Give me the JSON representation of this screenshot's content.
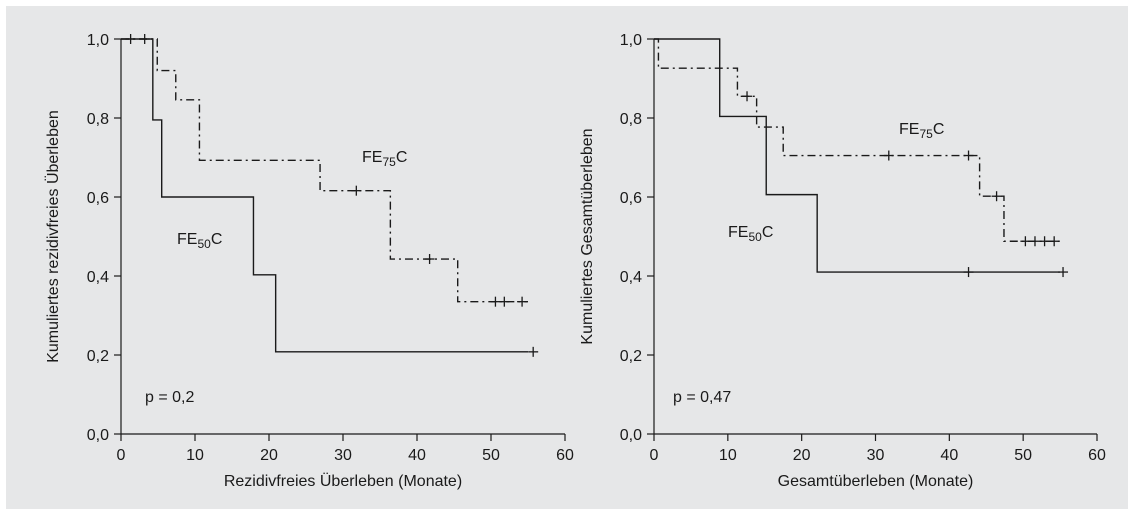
{
  "chart_data": [
    {
      "type": "line",
      "subtype": "kaplan-meier-step",
      "xlabel": "Rezidivfreies Überleben (Monate)",
      "ylabel": "Kumuliertes rezidivfreies Überleben",
      "xlim": [
        0,
        60
      ],
      "ylim": [
        0,
        1
      ],
      "x_ticks": [
        0,
        10,
        20,
        30,
        40,
        50,
        60
      ],
      "y_ticks": [
        0,
        0.2,
        0.4,
        0.6,
        0.8,
        1.0
      ],
      "y_tick_labels": [
        "0,0",
        "0,2",
        "0,4",
        "0,6",
        "0,8",
        "1,0"
      ],
      "annotation": "p = 0,2",
      "series": [
        {
          "label_main": "FE",
          "label_sub": "75",
          "label_tail": "C",
          "style": "dash-dot",
          "steps": [
            [
              0,
              1.0
            ],
            [
              4.9,
              0.92
            ],
            [
              7.4,
              0.846
            ],
            [
              10.6,
              0.693
            ],
            [
              26.9,
              0.616
            ],
            [
              36.4,
              0.443
            ],
            [
              45.5,
              0.335
            ],
            [
              55,
              0.335
            ]
          ],
          "censored": [
            [
              1.3,
              1.0
            ],
            [
              3.2,
              1.0
            ],
            [
              31.8,
              0.616
            ],
            [
              41.7,
              0.443
            ],
            [
              50.6,
              0.335
            ],
            [
              51.8,
              0.335
            ],
            [
              54.2,
              0.335
            ]
          ]
        },
        {
          "label_main": "FE",
          "label_sub": "50",
          "label_tail": "C",
          "style": "solid",
          "steps": [
            [
              0,
              1.0
            ],
            [
              4.3,
              0.795
            ],
            [
              5.5,
              0.6
            ],
            [
              17.9,
              0.403
            ],
            [
              20.9,
              0.208
            ],
            [
              55,
              0.208
            ]
          ],
          "censored": [
            [
              55.7,
              0.208
            ]
          ]
        }
      ]
    },
    {
      "type": "line",
      "subtype": "kaplan-meier-step",
      "xlabel": "Gesamtüberleben (Monate)",
      "ylabel": "Kumuliertes Gesamtüberleben",
      "xlim": [
        0,
        60
      ],
      "ylim": [
        0,
        1
      ],
      "x_ticks": [
        0,
        10,
        20,
        30,
        40,
        50,
        60
      ],
      "y_ticks": [
        0,
        0.2,
        0.4,
        0.6,
        0.8,
        1.0
      ],
      "y_tick_labels": [
        "0,0",
        "0,2",
        "0,4",
        "0,6",
        "0,8",
        "1,0"
      ],
      "annotation": "p = 0,47",
      "series": [
        {
          "label_main": "FE",
          "label_sub": "75",
          "label_tail": "C",
          "style": "dash-dot",
          "steps": [
            [
              0,
              1.0
            ],
            [
              0.6,
              0.926
            ],
            [
              11.3,
              0.855
            ],
            [
              13.9,
              0.777
            ],
            [
              17.5,
              0.705
            ],
            [
              44.1,
              0.602
            ],
            [
              47.4,
              0.488
            ],
            [
              55,
              0.488
            ]
          ],
          "censored": [
            [
              12.6,
              0.855
            ],
            [
              31.8,
              0.705
            ],
            [
              42.6,
              0.705
            ],
            [
              46.4,
              0.602
            ],
            [
              50.3,
              0.488
            ],
            [
              51.6,
              0.488
            ],
            [
              52.9,
              0.488
            ],
            [
              54.2,
              0.488
            ]
          ]
        },
        {
          "label_main": "FE",
          "label_sub": "50",
          "label_tail": "C",
          "style": "solid",
          "steps": [
            [
              0,
              1.0
            ],
            [
              8.9,
              0.804
            ],
            [
              15.2,
              0.606
            ],
            [
              22.1,
              0.41
            ],
            [
              55,
              0.41
            ]
          ],
          "censored": [
            [
              42.6,
              0.41
            ],
            [
              55.4,
              0.41
            ]
          ]
        }
      ]
    }
  ]
}
